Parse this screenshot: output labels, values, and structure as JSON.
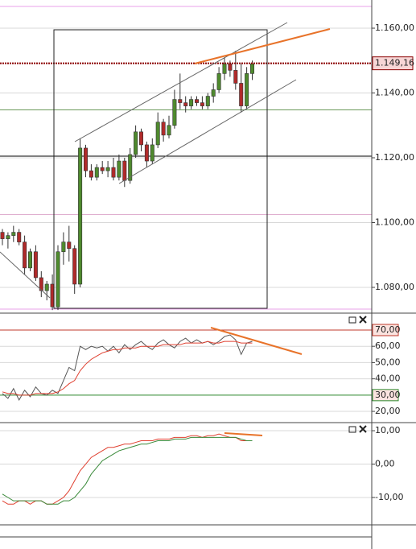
{
  "chart_data": [
    {
      "type": "candlestick",
      "open": [
        1.097,
        1.095,
        1.096,
        1.097,
        1.094,
        1.086,
        1.091,
        1.083,
        1.079,
        1.081,
        1.074,
        1.091,
        1.094,
        1.092,
        1.081,
        1.123,
        1.116,
        1.114,
        1.117,
        1.116,
        1.117,
        1.114,
        1.119,
        1.113,
        1.121,
        1.128,
        1.124,
        1.119,
        1.124,
        1.131,
        1.127,
        1.13,
        1.138,
        1.137,
        1.136,
        1.138,
        1.137,
        1.136,
        1.139,
        1.141,
        1.146,
        1.149,
        1.147,
        1.143,
        1.136,
        1.146
      ],
      "high": [
        1.098,
        1.097,
        1.099,
        1.098,
        1.096,
        1.092,
        1.093,
        1.085,
        1.082,
        1.084,
        1.093,
        1.097,
        1.099,
        1.093,
        1.126,
        1.124,
        1.118,
        1.118,
        1.119,
        1.119,
        1.12,
        1.121,
        1.12,
        1.123,
        1.13,
        1.129,
        1.125,
        1.126,
        1.134,
        1.132,
        1.133,
        1.141,
        1.146,
        1.139,
        1.139,
        1.139,
        1.139,
        1.14,
        1.143,
        1.148,
        1.151,
        1.15,
        1.153,
        1.149,
        1.148,
        1.15
      ],
      "low": [
        1.093,
        1.092,
        1.094,
        1.093,
        1.084,
        1.085,
        1.082,
        1.077,
        1.076,
        1.073,
        1.073,
        1.087,
        1.088,
        1.078,
        1.08,
        1.114,
        1.113,
        1.113,
        1.115,
        1.114,
        1.113,
        1.113,
        1.111,
        1.112,
        1.12,
        1.122,
        1.117,
        1.118,
        1.123,
        1.125,
        1.126,
        1.129,
        1.135,
        1.134,
        1.135,
        1.136,
        1.135,
        1.135,
        1.137,
        1.14,
        1.144,
        1.145,
        1.141,
        1.134,
        1.135,
        1.144
      ],
      "close": [
        1.095,
        1.096,
        1.097,
        1.094,
        1.086,
        1.091,
        1.083,
        1.079,
        1.081,
        1.074,
        1.091,
        1.094,
        1.092,
        1.081,
        1.123,
        1.116,
        1.114,
        1.117,
        1.116,
        1.117,
        1.114,
        1.119,
        1.113,
        1.121,
        1.128,
        1.124,
        1.119,
        1.124,
        1.131,
        1.127,
        1.13,
        1.138,
        1.137,
        1.136,
        1.138,
        1.137,
        1.136,
        1.139,
        1.141,
        1.146,
        1.149,
        1.147,
        1.143,
        1.136,
        1.146,
        1.149
      ],
      "up_color": "#4f8a2e",
      "down_color": "#b02a2a",
      "ylim": [
        1.0723,
        1.1687
      ],
      "yticks": [
        {
          "value": 1.08,
          "label": "1.080,00"
        },
        {
          "value": 1.1,
          "label": "1.100,00"
        },
        {
          "value": 1.12,
          "label": "1.120,00"
        },
        {
          "value": 1.14,
          "label": "1.140,00"
        },
        {
          "value": 1.16,
          "label": "1.160,00"
        }
      ],
      "grid": true,
      "last_price": {
        "value": 1.14916,
        "label": "1.149,16"
      },
      "hlines": [
        {
          "value": 1.1667,
          "color": "#e8a0e8"
        },
        {
          "value": 1.1348,
          "color": "#6a9a5a"
        },
        {
          "value": 1.1205,
          "color": "#000000"
        },
        {
          "value": 1.1025,
          "color": "#e0b0d0"
        },
        {
          "value": 1.0733,
          "color": "#e8a0e8"
        }
      ]
    },
    {
      "type": "line",
      "series": [
        {
          "color": "#555555",
          "values": [
            31,
            28,
            34,
            27,
            33,
            29,
            35,
            31,
            30,
            33,
            31,
            39,
            47,
            45,
            60,
            58,
            60,
            59,
            60,
            57,
            60,
            56,
            61,
            58,
            61,
            63,
            60,
            58,
            62,
            64,
            61,
            59,
            63,
            65,
            62,
            64,
            62,
            63,
            61,
            63,
            66,
            67,
            64,
            55,
            62,
            63
          ]
        },
        {
          "color": "#e04030",
          "values": [
            32,
            31,
            31,
            30,
            30,
            30,
            31,
            31,
            31,
            31,
            32,
            34,
            37,
            39,
            45,
            49,
            52,
            54,
            56,
            57,
            58,
            58,
            59,
            59,
            59,
            60,
            60,
            60,
            60,
            61,
            61,
            61,
            61,
            62,
            62,
            62,
            62,
            63,
            62,
            62,
            63,
            63,
            63,
            62,
            62,
            62
          ]
        }
      ],
      "ylim": [
        13.1,
        78.4
      ],
      "yticks": [
        {
          "value": 20,
          "label": "20,00"
        },
        {
          "value": 30,
          "label": "30,00"
        },
        {
          "value": 40,
          "label": "40,00"
        },
        {
          "value": 50,
          "label": "50,00"
        },
        {
          "value": 60,
          "label": "60,00"
        },
        {
          "value": 70,
          "label": "70,00"
        }
      ],
      "grid": true,
      "hlines": [
        {
          "value": 70,
          "color": "#c0392b"
        },
        {
          "value": 30,
          "color": "#2e8b2e"
        }
      ]
    },
    {
      "type": "line",
      "series": [
        {
          "color": "#e04030",
          "values": [
            -11,
            -12,
            -12,
            -11,
            -11,
            -12,
            -11,
            -11,
            -12,
            -12,
            -11,
            -10,
            -8,
            -5,
            -2,
            0,
            2,
            3,
            4,
            5,
            5,
            5.5,
            6,
            6,
            6.5,
            7,
            7,
            7,
            7.5,
            7.5,
            7.5,
            8,
            8,
            8,
            8.5,
            8.5,
            8,
            8.5,
            8.5,
            9,
            8.5,
            8,
            8,
            7,
            7,
            7
          ]
        },
        {
          "color": "#3a8a3a",
          "values": [
            -9,
            -10,
            -11,
            -11,
            -11,
            -11,
            -11,
            -11,
            -12,
            -12,
            -12,
            -11,
            -11,
            -10,
            -8,
            -6,
            -3,
            -1,
            1,
            2,
            3,
            4,
            4.5,
            5,
            5.5,
            6,
            6,
            6.5,
            7,
            7,
            7,
            7.5,
            7.5,
            7.5,
            8,
            8,
            8,
            8,
            8,
            8,
            8,
            8,
            8,
            7.5,
            7,
            7
          ]
        }
      ],
      "ylim": [
        -18.2,
        11.7
      ],
      "yticks": [
        {
          "value": -10,
          "label": "-10,00"
        },
        {
          "value": 0,
          "label": "0,00"
        },
        {
          "value": 10,
          "label": "10,00"
        }
      ],
      "grid": true
    }
  ]
}
